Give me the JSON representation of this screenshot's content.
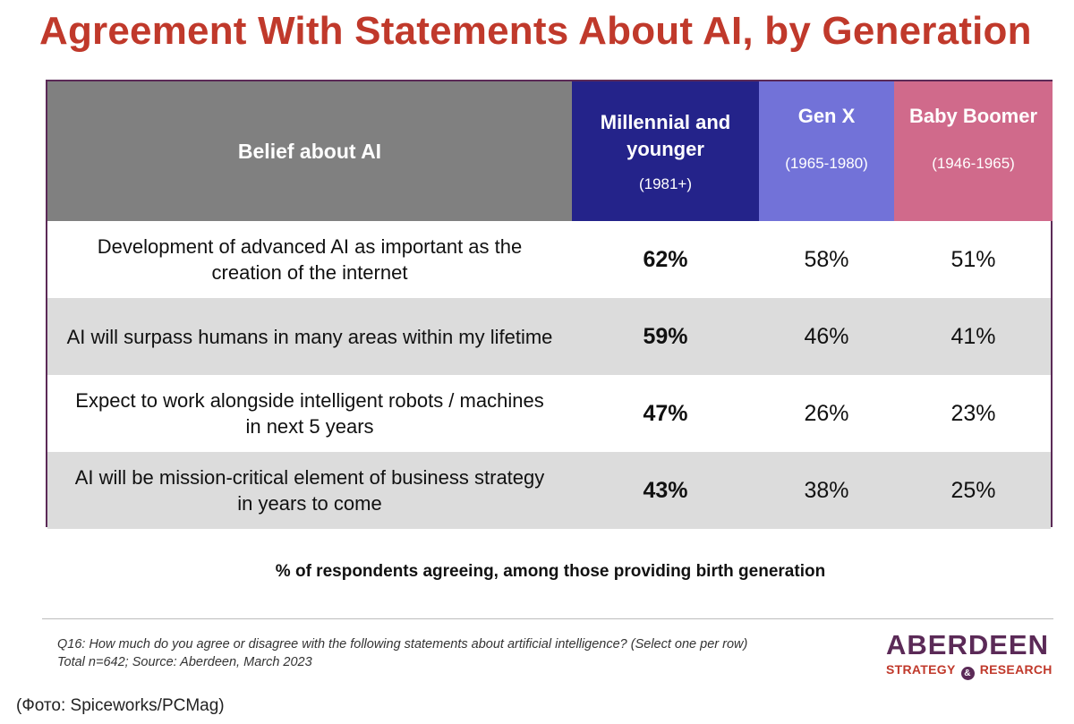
{
  "title": "Agreement With Statements About AI, by Generation",
  "chart_data": {
    "type": "table",
    "columns": [
      {
        "label": "Belief about AI",
        "sub": ""
      },
      {
        "label": "Millennial and younger",
        "sub": "(1981+)",
        "color": "#24238a"
      },
      {
        "label": "Gen X",
        "sub": "(1965-1980)",
        "color": "#7272d8"
      },
      {
        "label": "Baby Boomer",
        "sub": "(1946-1965)",
        "color": "#d06a8b"
      }
    ],
    "rows": [
      {
        "belief": "Development of advanced AI as important as the creation of the internet",
        "millennial": "62%",
        "genx": "58%",
        "boomer": "51%"
      },
      {
        "belief": "AI will surpass humans in many areas within my lifetime",
        "millennial": "59%",
        "genx": "46%",
        "boomer": "41%"
      },
      {
        "belief": "Expect to work alongside intelligent robots / machines in  next 5 years",
        "millennial": "47%",
        "genx": "26%",
        "boomer": "23%"
      },
      {
        "belief": "AI will be mission-critical element of  business strategy in years to come",
        "millennial": "43%",
        "genx": "38%",
        "boomer": "25%"
      }
    ]
  },
  "note": "% of respondents agreeing, among those providing birth generation",
  "footnote": {
    "question": "Q16: How much do you agree or disagree with the following statements about artificial intelligence? (Select one per row)",
    "source": "Total n=642; Source: Aberdeen, March 2023"
  },
  "logo": {
    "name": "ABERDEEN",
    "tagline_left": "STRATEGY",
    "tagline_amp": "&",
    "tagline_right": "RESEARCH"
  },
  "credit": "(Фото: Spiceworks/PCMag)",
  "colors": {
    "title": "#c0392b",
    "header_gray": "#808080",
    "row_shade": "#dcdcdc",
    "frame": "#5b2a57"
  }
}
